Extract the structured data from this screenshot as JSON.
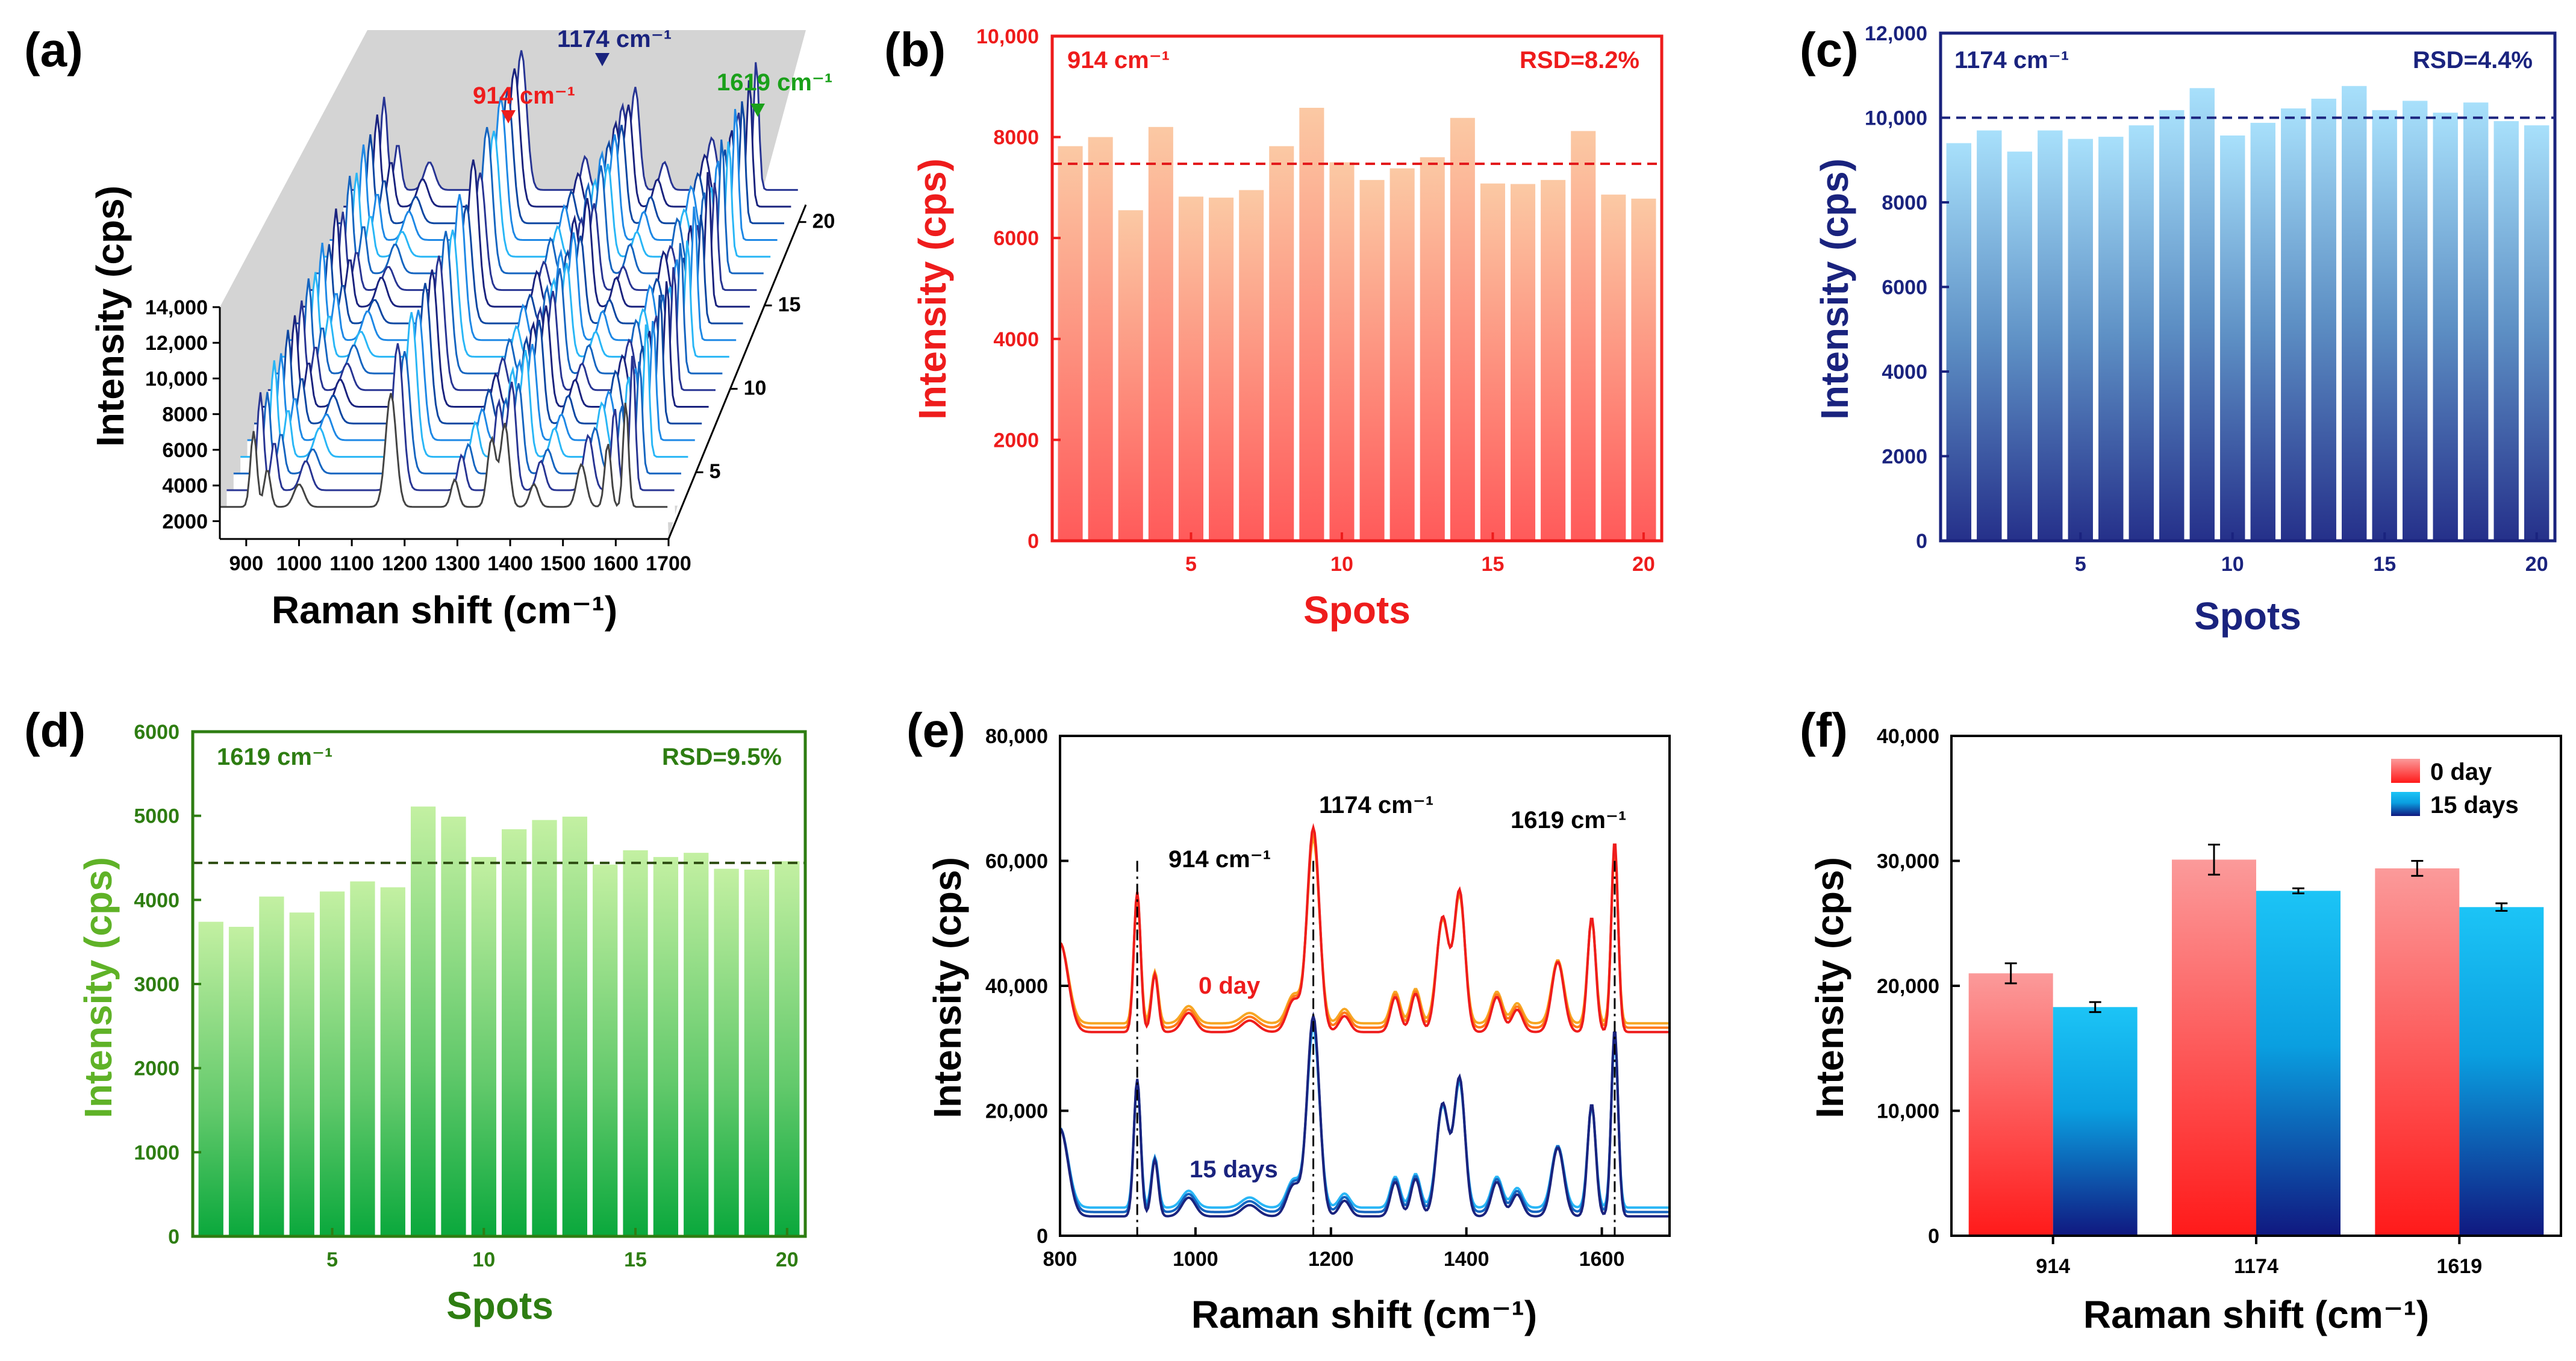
{
  "panels": {
    "a": "(a)",
    "b": "(b)",
    "c": "(c)",
    "d": "(d)",
    "e": "(e)",
    "f": "(f)"
  },
  "colors": {
    "red": "#ee1c1c",
    "navy": "#1a237e",
    "green": "#2e7d12",
    "bright_green": "#1aa01a",
    "black": "#000000",
    "blue_mid": "#1565c0",
    "cyan": "#29b6f6",
    "gray": "#9e9e9e"
  },
  "chart_data": [
    {
      "id": "a",
      "type": "line",
      "title": "",
      "xlabel": "Raman shift (cm⁻¹)",
      "ylabel": "Intensity (cps)",
      "zlabel_ticks": [
        "5",
        "10",
        "15",
        "20"
      ],
      "xticks": [
        "900",
        "1000",
        "1100",
        "1200",
        "1300",
        "1400",
        "1500",
        "1600",
        "1700"
      ],
      "yticks": [
        "2000",
        "4000",
        "6000",
        "8000",
        "10,000",
        "12,000",
        "14,000"
      ],
      "xlim": [
        850,
        1700
      ],
      "ylim": [
        1000,
        14000
      ],
      "n_spectra": 20,
      "annotations": [
        {
          "text": "914 cm⁻¹",
          "color": "red"
        },
        {
          "text": "1174 cm⁻¹",
          "color": "navy"
        },
        {
          "text": "1619 cm⁻¹",
          "color": "bright_green"
        }
      ]
    },
    {
      "id": "b",
      "type": "bar",
      "peak_label": "914 cm⁻¹",
      "rsd": "RSD=8.2%",
      "xlabel": "Spots",
      "ylabel": "Intensity (cps)",
      "categories": [
        1,
        2,
        3,
        4,
        5,
        6,
        7,
        8,
        9,
        10,
        11,
        12,
        13,
        14,
        15,
        16,
        17,
        18,
        19,
        20
      ],
      "xticks": [
        "5",
        "10",
        "15",
        "20"
      ],
      "yticks": [
        "0",
        "2000",
        "4000",
        "6000",
        "8000",
        "10,000"
      ],
      "ylim": [
        0,
        10000
      ],
      "values": [
        7820,
        8000,
        6550,
        8200,
        6820,
        6800,
        6950,
        7820,
        8580,
        7500,
        7150,
        7380,
        7600,
        8380,
        7080,
        7070,
        7150,
        8120,
        6860,
        6780
      ],
      "mean": 7470
    },
    {
      "id": "c",
      "type": "bar",
      "peak_label": "1174 cm⁻¹",
      "rsd": "RSD=4.4%",
      "xlabel": "Spots",
      "ylabel": "Intensity (cps)",
      "categories": [
        1,
        2,
        3,
        4,
        5,
        6,
        7,
        8,
        9,
        10,
        11,
        12,
        13,
        14,
        15,
        16,
        17,
        18,
        19,
        20
      ],
      "xticks": [
        "5",
        "10",
        "15",
        "20"
      ],
      "yticks": [
        "0",
        "2000",
        "4000",
        "6000",
        "8000",
        "10,000",
        "12,000"
      ],
      "ylim": [
        0,
        12000
      ],
      "values": [
        9400,
        9700,
        9200,
        9700,
        9500,
        9550,
        9820,
        10180,
        10700,
        9580,
        9880,
        10220,
        10450,
        10750,
        10180,
        10400,
        10120,
        10360,
        9920,
        9820
      ],
      "mean": 10000
    },
    {
      "id": "d",
      "type": "bar",
      "peak_label": "1619 cm⁻¹",
      "rsd": "RSD=9.5%",
      "xlabel": "Spots",
      "ylabel": "Intensity (cps)",
      "categories": [
        1,
        2,
        3,
        4,
        5,
        6,
        7,
        8,
        9,
        10,
        11,
        12,
        13,
        14,
        15,
        16,
        17,
        18,
        19,
        20
      ],
      "xticks": [
        "5",
        "10",
        "15",
        "20"
      ],
      "yticks": [
        "0",
        "1000",
        "2000",
        "3000",
        "4000",
        "5000",
        "6000"
      ],
      "ylim": [
        0,
        6000
      ],
      "values": [
        3740,
        3680,
        4040,
        3850,
        4100,
        4220,
        4150,
        5110,
        4990,
        4510,
        4840,
        4950,
        4990,
        4420,
        4590,
        4510,
        4560,
        4370,
        4360,
        4460
      ],
      "mean": 4440
    },
    {
      "id": "e",
      "type": "line",
      "xlabel": "Raman shift (cm⁻¹)",
      "ylabel": "Intensity (cps)",
      "xlim": [
        800,
        1700
      ],
      "ylim": [
        0,
        80000
      ],
      "xticks": [
        "800",
        "1000",
        "1200",
        "1400",
        "1600"
      ],
      "yticks": [
        "0",
        "20,000",
        "40,000",
        "60,000",
        "80,000"
      ],
      "peak_markers": [
        914,
        1174,
        1619
      ],
      "annotations": [
        {
          "text": "914 cm⁻¹"
        },
        {
          "text": "1174 cm⁻¹"
        },
        {
          "text": "1619 cm⁻¹"
        }
      ],
      "series": [
        {
          "name": "0 day",
          "baseline": 34000,
          "color": "red"
        },
        {
          "name": "15 days",
          "baseline": 4500,
          "color": "navy"
        }
      ]
    },
    {
      "id": "f",
      "type": "bar",
      "xlabel": "Raman shift (cm⁻¹)",
      "ylabel": "Intensity (cps)",
      "categories": [
        "914",
        "1174",
        "1619"
      ],
      "yticks": [
        "0",
        "10,000",
        "20,000",
        "30,000",
        "40,000"
      ],
      "ylim": [
        0,
        40000
      ],
      "legend": "top-right",
      "series": [
        {
          "name": "0 day",
          "values": [
            21000,
            30100,
            29400
          ],
          "errors": [
            800,
            1200,
            600
          ]
        },
        {
          "name": "15 days",
          "values": [
            18300,
            27600,
            26300
          ],
          "errors": [
            400,
            200,
            300
          ]
        }
      ]
    }
  ]
}
